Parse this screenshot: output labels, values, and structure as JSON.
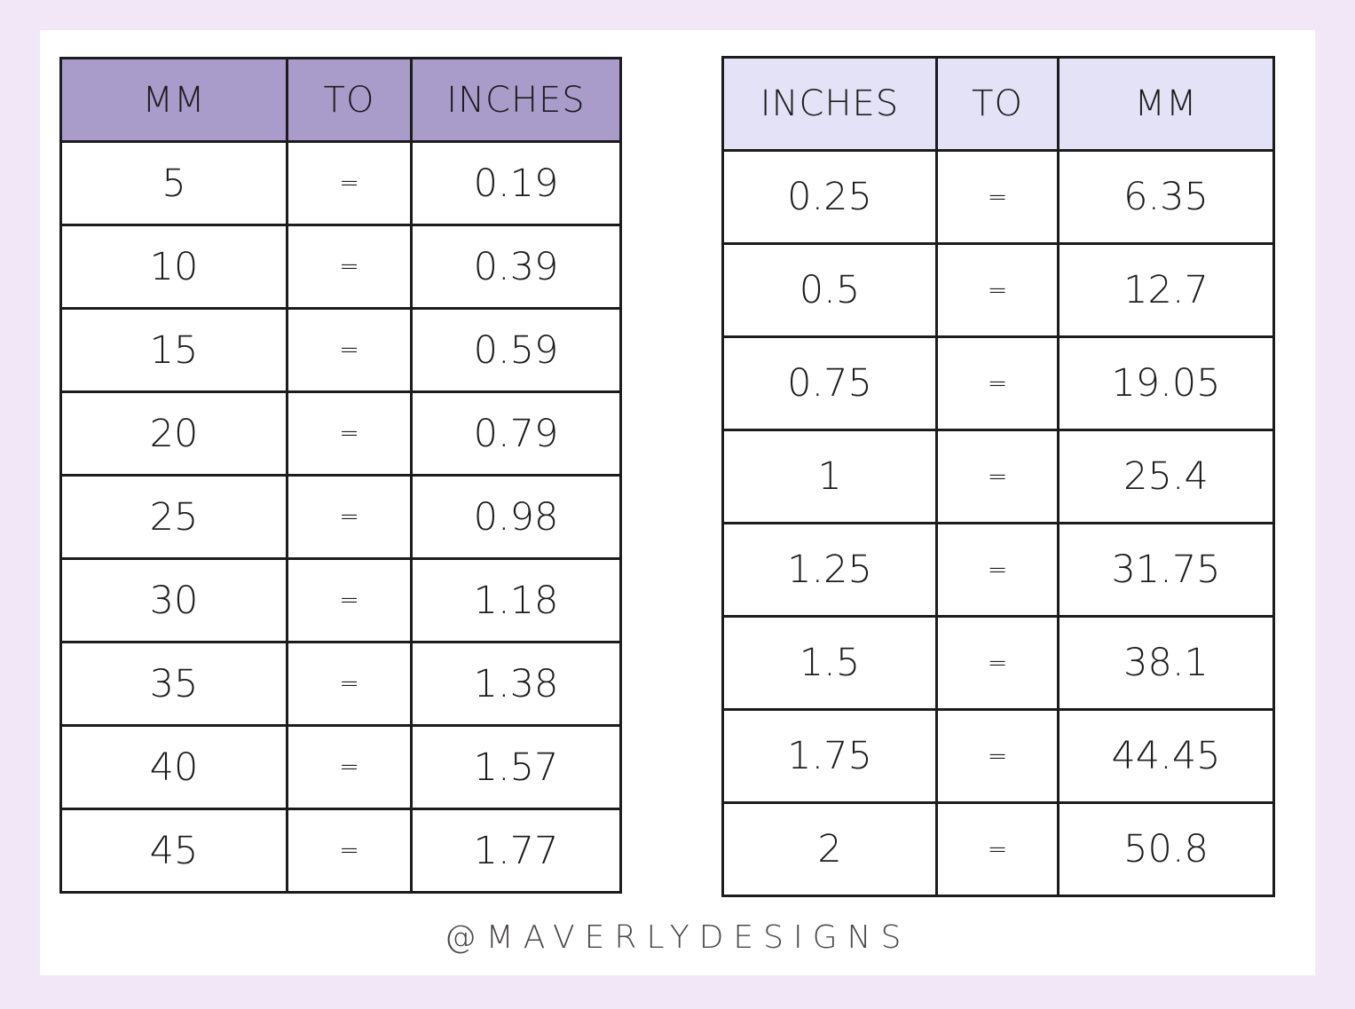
{
  "page": {
    "frame_color": "#f2e7f6",
    "card_color": "#ffffff",
    "grid_line_color": "#1c1c1c",
    "text_color": "#1c1c1c"
  },
  "footer": {
    "credit": "@MAVERLYDESIGNS",
    "color": "#4b4749"
  },
  "chart_data": [
    {
      "type": "table",
      "header": [
        "MM",
        "TO",
        "INCHES"
      ],
      "header_bg": "#a99cca",
      "rows": [
        [
          "5",
          "=",
          "0.19"
        ],
        [
          "10",
          "=",
          "0.39"
        ],
        [
          "15",
          "=",
          "0.59"
        ],
        [
          "20",
          "=",
          "0.79"
        ],
        [
          "25",
          "=",
          "0.98"
        ],
        [
          "30",
          "=",
          "1.18"
        ],
        [
          "35",
          "=",
          "1.38"
        ],
        [
          "40",
          "=",
          "1.57"
        ],
        [
          "45",
          "=",
          "1.77"
        ]
      ]
    },
    {
      "type": "table",
      "header": [
        "INCHES",
        "TO",
        "MM"
      ],
      "header_bg": "#e4e2f7",
      "rows": [
        [
          "0.25",
          "=",
          "6.35"
        ],
        [
          "0.5",
          "=",
          "12.7"
        ],
        [
          "0.75",
          "=",
          "19.05"
        ],
        [
          "1",
          "=",
          "25.4"
        ],
        [
          "1.25",
          "=",
          "31.75"
        ],
        [
          "1.5",
          "=",
          "38.1"
        ],
        [
          "1.75",
          "=",
          "44.45"
        ],
        [
          "2",
          "=",
          "50.8"
        ]
      ]
    }
  ]
}
